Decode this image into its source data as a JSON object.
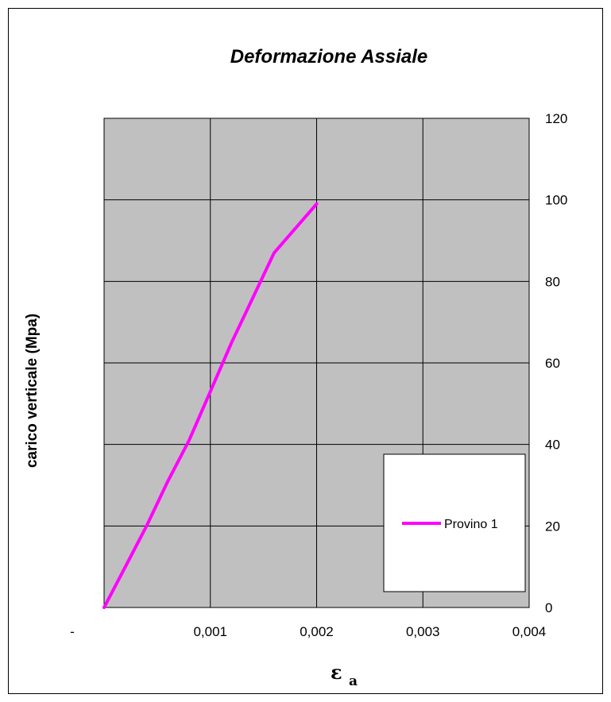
{
  "chart_data": {
    "type": "line",
    "title": "Deformazione Assiale",
    "xlabel": "ε",
    "xlabel_subscript": "a",
    "ylabel": "carico verticale (Mpa)",
    "xlim": [
      0,
      0.004
    ],
    "ylim": [
      0,
      120
    ],
    "x_ticks": [
      {
        "value": 0,
        "label": "-"
      },
      {
        "value": 0.001,
        "label": "0,001"
      },
      {
        "value": 0.002,
        "label": "0,002"
      },
      {
        "value": 0.003,
        "label": "0,003"
      },
      {
        "value": 0.004,
        "label": "0,004"
      }
    ],
    "y_ticks": [
      {
        "value": 0,
        "label": "0"
      },
      {
        "value": 20,
        "label": "20"
      },
      {
        "value": 40,
        "label": "40"
      },
      {
        "value": 60,
        "label": "60"
      },
      {
        "value": 80,
        "label": "80"
      },
      {
        "value": 100,
        "label": "100"
      },
      {
        "value": 120,
        "label": "120"
      }
    ],
    "y_axis_side": "right",
    "grid": true,
    "plot_background": "#c0c0c0",
    "legend_position": "bottom-right",
    "series": [
      {
        "name": "Provino 1",
        "color": "#ff00ff",
        "x": [
          0,
          0.0002,
          0.0004,
          0.0006,
          0.0008,
          0.001,
          0.0012,
          0.0014,
          0.0016,
          0.0018,
          0.002
        ],
        "y": [
          0,
          10,
          20,
          31,
          41,
          53,
          65,
          76,
          87,
          93,
          99
        ]
      }
    ]
  }
}
